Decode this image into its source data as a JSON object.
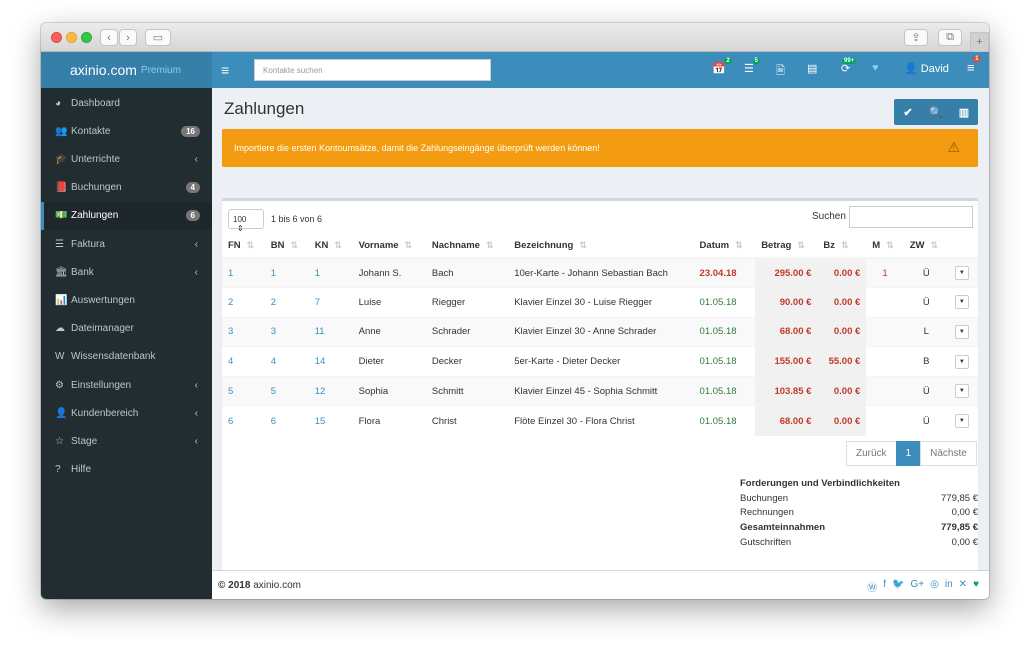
{
  "app": {
    "logo": "axinio.com",
    "logo_sub": "Premium"
  },
  "navbar": {
    "search_placeholder": "Kontakte suchen",
    "badges": {
      "calendar": "2",
      "tasks": "5",
      "sync": "99+",
      "menu": "1"
    },
    "user": "David"
  },
  "sidebar": {
    "items": [
      {
        "label": "Dashboard",
        "icon": "dashboard-icon",
        "glyph": "◕"
      },
      {
        "label": "Kontakte",
        "icon": "users-icon",
        "glyph": "👥",
        "badge": "16"
      },
      {
        "label": "Unterrichte",
        "icon": "graduation-cap-icon",
        "glyph": "🎓",
        "arrow": "‹"
      },
      {
        "label": "Buchungen",
        "icon": "book-icon",
        "glyph": "📕",
        "badge": "4"
      },
      {
        "label": "Zahlungen",
        "icon": "money-icon",
        "glyph": "💵",
        "badge": "6",
        "active": true
      },
      {
        "label": "Faktura",
        "icon": "list-icon",
        "glyph": "☰",
        "arrow": "‹"
      },
      {
        "label": "Bank",
        "icon": "bank-icon",
        "glyph": "🏛",
        "arrow": "‹"
      },
      {
        "label": "Auswertungen",
        "icon": "bar-chart-icon",
        "glyph": "📊"
      },
      {
        "label": "Dateimanager",
        "icon": "cloud-icon",
        "glyph": "☁"
      },
      {
        "label": "Wissensdatenbank",
        "icon": "wikipedia-icon",
        "glyph": "W"
      },
      {
        "label": "Einstellungen",
        "icon": "gear-icon",
        "glyph": "⚙",
        "arrow": "‹"
      },
      {
        "label": "Kundenbereich",
        "icon": "user-icon",
        "glyph": "👤",
        "arrow": "‹"
      },
      {
        "label": "Stage",
        "icon": "star-icon",
        "glyph": "☆",
        "arrow": "‹"
      },
      {
        "label": "Hilfe",
        "icon": "question-icon",
        "glyph": "?"
      }
    ]
  },
  "page": {
    "title": "Zahlungen",
    "alert": "Importiere die ersten Kontoumsätze, damit die Zahlungseingänge überprüft werden können!"
  },
  "table": {
    "page_length": "100",
    "info": "1 bis 6 von 6",
    "search_label": "Suchen",
    "columns": [
      "FN",
      "BN",
      "KN",
      "Vorname",
      "Nachname",
      "Bezeichnung",
      "Datum",
      "Betrag",
      "Bz",
      "M",
      "ZW"
    ],
    "rows": [
      {
        "fn": "1",
        "bn": "1",
        "kn": "1",
        "vorname": "Johann S.",
        "nachname": "Bach",
        "bezeichnung": "10er-Karte - Johann Sebastian Bach",
        "datum": "23.04.18",
        "betrag": "295.00 €",
        "bz": "0.00 €",
        "m": "1",
        "zw": "Ü",
        "datum_red": true
      },
      {
        "fn": "2",
        "bn": "2",
        "kn": "7",
        "vorname": "Luise",
        "nachname": "Riegger",
        "bezeichnung": "Klavier Einzel 30 - Luise Riegger",
        "datum": "01.05.18",
        "betrag": "90.00 €",
        "bz": "0.00 €",
        "m": "",
        "zw": "Ü"
      },
      {
        "fn": "3",
        "bn": "3",
        "kn": "11",
        "vorname": "Anne",
        "nachname": "Schrader",
        "bezeichnung": "Klavier Einzel 30 - Anne Schrader",
        "datum": "01.05.18",
        "betrag": "68.00 €",
        "bz": "0.00 €",
        "m": "",
        "zw": "L"
      },
      {
        "fn": "4",
        "bn": "4",
        "kn": "14",
        "vorname": "Dieter",
        "nachname": "Decker",
        "bezeichnung": "5er-Karte - Dieter Decker",
        "datum": "01.05.18",
        "betrag": "155.00 €",
        "bz": "55.00 €",
        "m": "",
        "zw": "B"
      },
      {
        "fn": "5",
        "bn": "5",
        "kn": "12",
        "vorname": "Sophia",
        "nachname": "Schmitt",
        "bezeichnung": "Klavier Einzel 45 - Sophia Schmitt",
        "datum": "01.05.18",
        "betrag": "103.85 €",
        "bz": "0.00 €",
        "m": "",
        "zw": "Ü"
      },
      {
        "fn": "6",
        "bn": "6",
        "kn": "15",
        "vorname": "Flora",
        "nachname": "Christ",
        "bezeichnung": "Flöte Einzel 30 - Flora Christ",
        "datum": "01.05.18",
        "betrag": "68.00 €",
        "bz": "0.00 €",
        "m": "",
        "zw": "Ü"
      }
    ]
  },
  "pagination": {
    "prev": "Zurück",
    "current": "1",
    "next": "Nächste"
  },
  "summary": {
    "heading": "Forderungen und Verbindlichkeiten",
    "rows": [
      {
        "label": "Buchungen",
        "value": "779,85 €",
        "bold": false
      },
      {
        "label": "Rechnungen",
        "value": "0,00 €",
        "bold": false
      },
      {
        "label": "Gesamteinnahmen",
        "value": "779,85 €",
        "bold": true
      },
      {
        "label": "Gutschriften",
        "value": "0,00 €",
        "bold": false
      }
    ]
  },
  "footer": {
    "copyright": "© 2018",
    "brand": "axinio.com"
  }
}
